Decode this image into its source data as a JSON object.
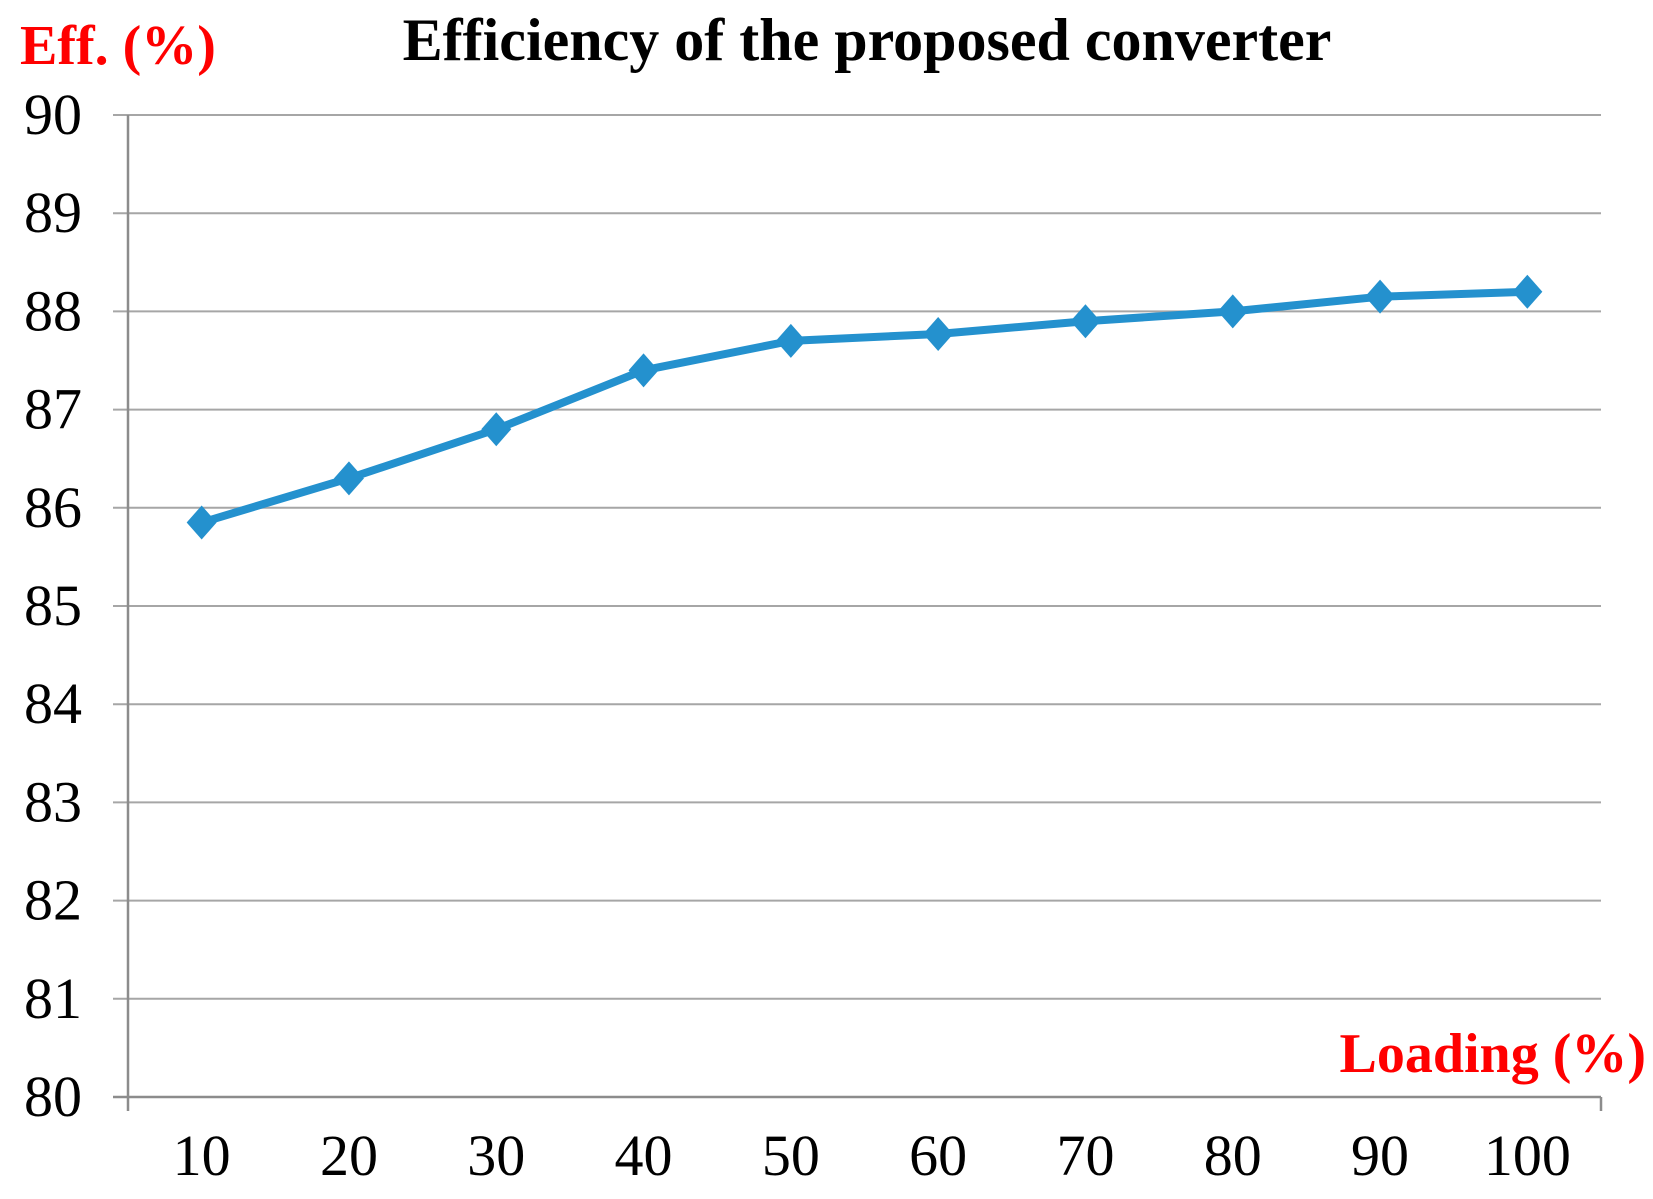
{
  "figure": {
    "title": "Efficiency of the proposed converter",
    "y_axis_title": "Eff. (%)",
    "x_axis_title": "Loading (%)"
  },
  "chart_data": {
    "type": "line",
    "title": "Efficiency of the proposed converter",
    "xlabel": "Loading (%)",
    "ylabel": "Eff. (%)",
    "x": [
      10,
      20,
      30,
      40,
      50,
      60,
      70,
      80,
      90,
      100
    ],
    "series": [
      {
        "name": "Efficiency",
        "values": [
          85.85,
          86.3,
          86.8,
          87.4,
          87.7,
          87.77,
          87.9,
          88.0,
          88.15,
          88.2
        ]
      }
    ],
    "ylim": [
      80,
      90
    ],
    "yticks": [
      80,
      81,
      82,
      83,
      84,
      85,
      86,
      87,
      88,
      89,
      90
    ],
    "xticks": [
      10,
      20,
      30,
      40,
      50,
      60,
      70,
      80,
      90,
      100
    ],
    "grid": true,
    "legend_position": "none",
    "marker": "diamond",
    "colors": {
      "line": "#2491CE",
      "marker": "#2491CE",
      "grid": "#A6A6A6",
      "axis": "#8C8C8C",
      "axis_titles": "#FF0000",
      "title": "#000000",
      "tick_labels": "#000000"
    }
  }
}
